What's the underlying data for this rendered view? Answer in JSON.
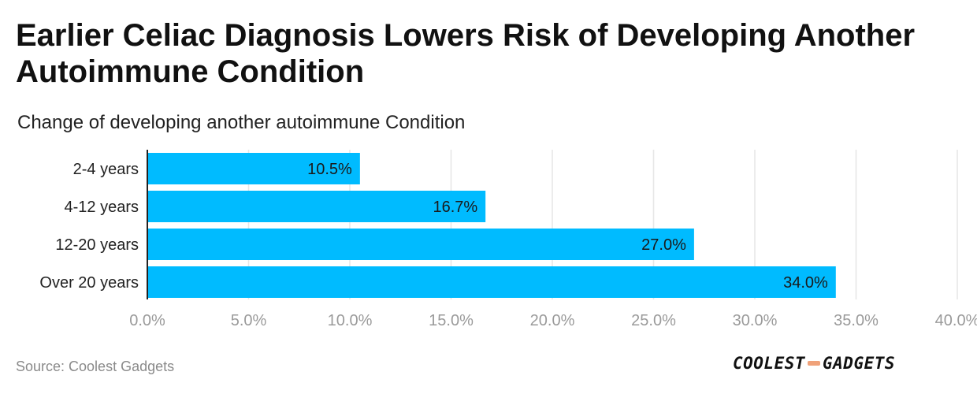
{
  "title": "Earlier Celiac Diagnosis Lowers Risk of Developing Another Autoimmune Condition",
  "subtitle": "Change of developing another autoimmune Condition",
  "source": "Source: Coolest Gadgets",
  "logo": {
    "left": "COOLEST",
    "right": "GADGETS",
    "dash_color": "#f0a27a"
  },
  "chart_data": {
    "type": "bar",
    "orientation": "horizontal",
    "categories": [
      "2-4 years",
      "4-12 years",
      "12-20 years",
      "Over 20 years"
    ],
    "values": [
      10.5,
      16.7,
      27.0,
      34.0
    ],
    "value_labels": [
      "10.5%",
      "16.7%",
      "27.0%",
      "34.0%"
    ],
    "xlim": [
      0,
      40
    ],
    "xticks": [
      0,
      5,
      10,
      15,
      20,
      25,
      30,
      35,
      40
    ],
    "xtick_labels": [
      "0.0%",
      "5.0%",
      "10.0%",
      "15.0%",
      "20.0%",
      "25.0%",
      "30.0%",
      "35.0%",
      "40.0%"
    ],
    "grid": true,
    "bar_color": "#00bbff",
    "grid_color": "#e6e6e6",
    "tick_label_color": "#9a9a9a"
  }
}
